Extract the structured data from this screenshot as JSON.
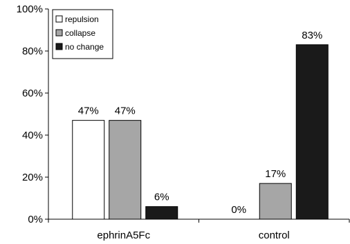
{
  "chart_data": {
    "type": "bar",
    "categories": [
      "ephrinA5Fc",
      "control"
    ],
    "series": [
      {
        "name": "repulsion",
        "values": [
          47,
          0
        ],
        "color": "#ffffff",
        "labels": [
          "47%",
          "0%"
        ]
      },
      {
        "name": "collapse",
        "values": [
          47,
          17
        ],
        "color": "#a6a6a6",
        "labels": [
          "47%",
          "17%"
        ]
      },
      {
        "name": "no change",
        "values": [
          6,
          83
        ],
        "color": "#1a1a1a",
        "labels": [
          "6%",
          "83%"
        ]
      }
    ],
    "ylim": [
      0,
      100
    ],
    "yticks": [
      0,
      20,
      40,
      60,
      80,
      100
    ],
    "ytick_labels": [
      "0%",
      "20%",
      "40%",
      "60%",
      "80%",
      "100%"
    ],
    "title": "",
    "xlabel": "",
    "ylabel": "",
    "grid": false,
    "legend": {
      "position": "top-left",
      "framed": true
    }
  }
}
